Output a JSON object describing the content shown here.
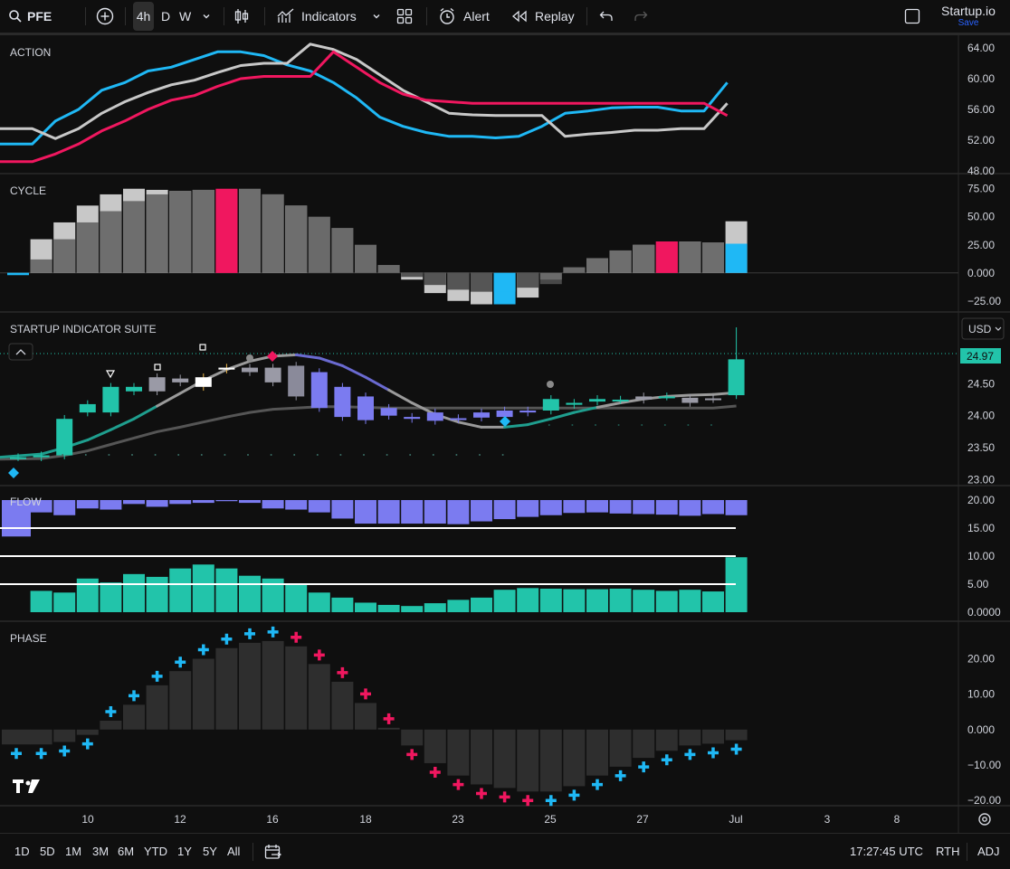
{
  "header": {
    "symbol": "PFE",
    "intervals": [
      "4h",
      "D",
      "W"
    ],
    "active_interval": "4h",
    "indicators_label": "Indicators",
    "alert_label": "Alert",
    "replay_label": "Replay",
    "layout_name": "Startup.io",
    "save_label": "Save"
  },
  "panes": {
    "action": "ACTION",
    "cycle": "CYCLE",
    "suite": "STARTUP INDICATOR SUITE",
    "flow": "FLOW",
    "phase": "PHASE"
  },
  "axes": {
    "action_ticks": [
      "64.00",
      "60.00",
      "56.00",
      "52.00",
      "48.00"
    ],
    "cycle_ticks": [
      "75.00",
      "50.00",
      "25.00",
      "0.000",
      "−25.00"
    ],
    "suite_ticks": [
      "24.50",
      "24.00",
      "23.50",
      "23.00"
    ],
    "flow_ticks": [
      "20.00",
      "15.00",
      "10.00",
      "5.00",
      "0.0000"
    ],
    "phase_ticks": [
      "20.00",
      "10.00",
      "0.000",
      "−10.00",
      "−20.00"
    ],
    "time_ticks": [
      "10",
      "12",
      "16",
      "18",
      "23",
      "25",
      "27",
      "Jul",
      "3",
      "8"
    ],
    "currency": "USD",
    "last_price": "24.97"
  },
  "bottom": {
    "ranges": [
      "1D",
      "5D",
      "1M",
      "3M",
      "6M",
      "YTD",
      "1Y",
      "5Y",
      "All"
    ],
    "time": "17:27:45 UTC",
    "session": "RTH",
    "adj": "ADJ"
  },
  "colors": {
    "bg": "#0f0f0f",
    "cyan": "#1fb8f5",
    "magenta": "#f0175f",
    "gray": "#c8c8c8",
    "teal": "#22c4aa",
    "purple": "#7b7bf0",
    "grid": "#2a2a2a"
  },
  "chart_data": [
    {
      "type": "line",
      "pane": "ACTION",
      "x": [
        0,
        1,
        2,
        3,
        4,
        5,
        6,
        7,
        8,
        9,
        10,
        11,
        12,
        13,
        14,
        15,
        16,
        17,
        18,
        19,
        20,
        21,
        22,
        23,
        24,
        25,
        26,
        27,
        28,
        29,
        30,
        31
      ],
      "series": [
        {
          "values": [
            51.5,
            51.5,
            54.5,
            56,
            58.5,
            59.5,
            61,
            61.5,
            62.5,
            63.5,
            63.5,
            63,
            61.8,
            61,
            59.5,
            57.5,
            55,
            53.8,
            53,
            52.5,
            52.5,
            52.3,
            52.5,
            53.8,
            55.5,
            55.8,
            56.2,
            56.3,
            56.3,
            55.8,
            55.8,
            59.5
          ]
        },
        {
          "values": [
            53.5,
            53.5,
            52.2,
            53.5,
            55.5,
            57,
            58.2,
            59.2,
            59.8,
            60.8,
            61.7,
            62,
            62,
            64.5,
            63.8,
            62.5,
            60.5,
            58.5,
            57,
            55.5,
            55.3,
            55.2,
            55.2,
            55.2,
            52.5,
            52.8,
            53,
            53.3,
            53.3,
            53.5,
            53.5,
            56.8
          ]
        },
        {
          "values": [
            49.2,
            49.2,
            50.2,
            51.5,
            53.2,
            54.5,
            56,
            57.2,
            57.8,
            59,
            60,
            60.3,
            60.3,
            60.3,
            63.5,
            61.5,
            59.5,
            58,
            57.2,
            57,
            56.8,
            56.8,
            56.8,
            56.8,
            56.8,
            56.8,
            56.8,
            56.8,
            56.8,
            56.8,
            56.8,
            55.2
          ]
        }
      ],
      "ylim": [
        48,
        64
      ]
    },
    {
      "type": "bar",
      "pane": "CYCLE",
      "x": [
        0,
        1,
        2,
        3,
        4,
        5,
        6,
        7,
        8,
        9,
        10,
        11,
        12,
        13,
        14,
        15,
        16,
        17,
        18,
        19,
        20,
        21,
        22,
        23,
        24,
        25,
        26,
        27,
        28,
        29,
        30,
        31
      ],
      "series": [
        {
          "values": [
            -2,
            12,
            30,
            45,
            55,
            64,
            70,
            73,
            74,
            75,
            75,
            70,
            60,
            50,
            40,
            25,
            7,
            -6,
            -18,
            -25,
            -28,
            -28,
            -22,
            -10,
            5,
            13,
            20,
            25,
            28,
            28,
            27,
            26
          ]
        },
        {
          "values": [
            -2,
            30,
            45,
            60,
            70,
            75,
            74,
            73,
            74,
            74,
            73,
            70,
            60,
            50,
            40,
            25,
            7,
            -6,
            -18,
            -25,
            -28,
            -28,
            -22,
            -10,
            5,
            13,
            20,
            25,
            28,
            28,
            27,
            46
          ]
        }
      ],
      "ylim": [
        -30,
        78
      ]
    },
    {
      "type": "candlestick",
      "pane": "STARTUP INDICATOR SUITE",
      "x": [
        0,
        1,
        2,
        3,
        4,
        5,
        6,
        7,
        8,
        9,
        10,
        11,
        12,
        13,
        14,
        15,
        16,
        17,
        18,
        19,
        20,
        21,
        22,
        23,
        24,
        25,
        26,
        27,
        28,
        29,
        30,
        31
      ],
      "open": [
        23.35,
        23.35,
        23.38,
        24.05,
        24.05,
        24.38,
        24.6,
        24.58,
        24.45,
        24.72,
        24.75,
        24.75,
        24.78,
        24.68,
        24.45,
        24.3,
        24.12,
        23.98,
        23.92,
        23.95,
        24.05,
        23.98,
        24.08,
        24.08,
        24.17,
        24.22,
        24.25,
        24.3,
        24.3,
        24.28,
        24.27,
        24.32
      ],
      "close": [
        23.35,
        23.38,
        23.95,
        24.18,
        24.45,
        24.45,
        24.38,
        24.52,
        24.6,
        24.75,
        24.68,
        24.52,
        24.3,
        24.12,
        23.98,
        23.93,
        24,
        23.95,
        24.05,
        23.96,
        23.97,
        24.08,
        24.05,
        24.26,
        24.2,
        24.26,
        24.25,
        24.25,
        24.3,
        24.2,
        24.26,
        24.88
      ],
      "ylim": [
        22.95,
        24.97
      ]
    },
    {
      "type": "bar",
      "pane": "FLOW",
      "x": [
        0,
        1,
        2,
        3,
        4,
        5,
        6,
        7,
        8,
        9,
        10,
        11,
        12,
        13,
        14,
        15,
        16,
        17,
        18,
        19,
        20,
        21,
        22,
        23,
        24,
        25,
        26,
        27,
        28,
        29,
        30,
        31
      ],
      "series": [
        {
          "values": [
            13.5,
            17.8,
            17.3,
            18.5,
            18.3,
            19.3,
            18.8,
            19.3,
            19.5,
            19.8,
            19.5,
            18.5,
            18.3,
            17.8,
            16.7,
            15.8,
            15.8,
            15.8,
            15.8,
            15.7,
            16.2,
            16.6,
            17,
            17.3,
            17.7,
            17.8,
            17.6,
            17.5,
            17.4,
            17.2,
            17.5,
            17.3
          ]
        },
        {
          "values": [
            0,
            3.8,
            3.5,
            6,
            5.3,
            6.8,
            6.3,
            7.8,
            8.5,
            7.8,
            6.5,
            6,
            5,
            3.5,
            2.6,
            1.7,
            1.3,
            1.1,
            1.6,
            2.2,
            2.6,
            4,
            4.3,
            4.2,
            4.1,
            4.1,
            4.2,
            4,
            3.8,
            4,
            3.7,
            9.8
          ]
        }
      ],
      "ylim": [
        0,
        20
      ]
    },
    {
      "type": "bar",
      "pane": "PHASE",
      "x": [
        0,
        1,
        2,
        3,
        4,
        5,
        6,
        7,
        8,
        9,
        10,
        11,
        12,
        13,
        14,
        15,
        16,
        17,
        18,
        19,
        20,
        21,
        22,
        23,
        24,
        25,
        26,
        27,
        28,
        29,
        30,
        31
      ],
      "values": [
        -4.2,
        -4.2,
        -3.5,
        -1.5,
        2.5,
        7,
        12.5,
        16.5,
        20,
        23,
        24.5,
        25,
        23.5,
        18.5,
        13.5,
        7.5,
        0.5,
        -4.5,
        -9.5,
        -13,
        -15.5,
        -16.5,
        -17.5,
        -17.5,
        -16,
        -13,
        -10.5,
        -8,
        -6,
        -4.5,
        -4,
        -3
      ],
      "ylim": [
        -21,
        26
      ]
    }
  ]
}
